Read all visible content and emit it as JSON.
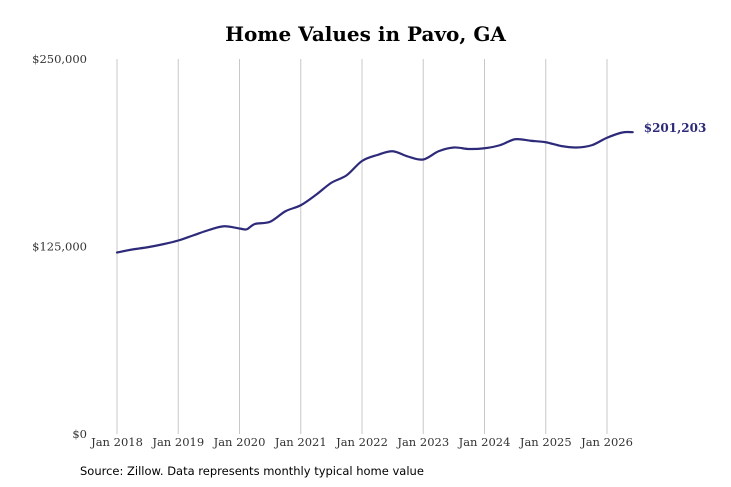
{
  "chart_data": {
    "type": "line",
    "title": "Home Values in Pavo, GA",
    "xlabel": "",
    "ylabel": "",
    "ylim": [
      0,
      250000
    ],
    "y_ticks": [
      {
        "value": 0,
        "label": "$0"
      },
      {
        "value": 125000,
        "label": "$125,000"
      },
      {
        "value": 250000,
        "label": "$250,000"
      }
    ],
    "x_ticks": [
      {
        "value": 2018,
        "label": "Jan 2018"
      },
      {
        "value": 2019,
        "label": "Jan 2019"
      },
      {
        "value": 2020,
        "label": "Jan 2020"
      },
      {
        "value": 2021,
        "label": "Jan 2021"
      },
      {
        "value": 2022,
        "label": "Jan 2022"
      },
      {
        "value": 2023,
        "label": "Jan 2023"
      },
      {
        "value": 2024,
        "label": "Jan 2024"
      },
      {
        "value": 2025,
        "label": "Jan 2025"
      },
      {
        "value": 2026,
        "label": "Jan 2026"
      }
    ],
    "xlim": [
      2018,
      2026.5
    ],
    "vertical_grid": true,
    "line_color": "#2e2a7a",
    "end_label": "$201,203",
    "series": [
      {
        "values": [
          [
            2018.0,
            121000
          ],
          [
            2018.25,
            123000
          ],
          [
            2018.5,
            124500
          ],
          [
            2018.75,
            126500
          ],
          [
            2019.0,
            129000
          ],
          [
            2019.25,
            132500
          ],
          [
            2019.5,
            136000
          ],
          [
            2019.75,
            138500
          ],
          [
            2020.0,
            137000
          ],
          [
            2020.12,
            136500
          ],
          [
            2020.25,
            140000
          ],
          [
            2020.5,
            141500
          ],
          [
            2020.75,
            148500
          ],
          [
            2021.0,
            152500
          ],
          [
            2021.25,
            159500
          ],
          [
            2021.5,
            167500
          ],
          [
            2021.75,
            172500
          ],
          [
            2022.0,
            182000
          ],
          [
            2022.25,
            186000
          ],
          [
            2022.5,
            188500
          ],
          [
            2022.75,
            185000
          ],
          [
            2023.0,
            183000
          ],
          [
            2023.25,
            188500
          ],
          [
            2023.5,
            191000
          ],
          [
            2023.75,
            190000
          ],
          [
            2024.0,
            190500
          ],
          [
            2024.25,
            192500
          ],
          [
            2024.5,
            196500
          ],
          [
            2024.75,
            195500
          ],
          [
            2025.0,
            194500
          ],
          [
            2025.25,
            192000
          ],
          [
            2025.5,
            191000
          ],
          [
            2025.75,
            192500
          ],
          [
            2026.0,
            197500
          ],
          [
            2026.25,
            201000
          ],
          [
            2026.42,
            201203
          ]
        ]
      }
    ],
    "source_note": "Source: Zillow. Data represents monthly typical home value"
  }
}
